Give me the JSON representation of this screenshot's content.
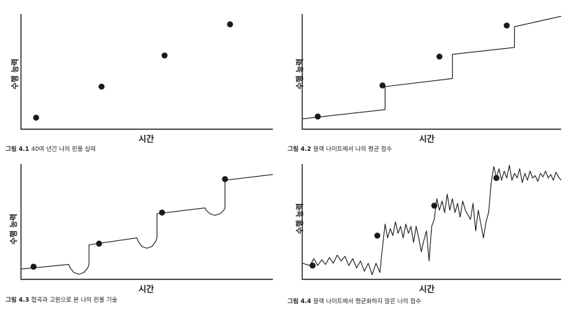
{
  "chart_data": [
    {
      "type": "scatter",
      "caption_prefix": "그림 4.1",
      "caption": "40여 년간 나의 핀볼 실력",
      "xlabel": "시간",
      "ylabel": "수행 능력",
      "xlim": [
        0,
        100
      ],
      "ylim": [
        0,
        100
      ],
      "series": [
        {
          "kind": "points",
          "x": [
            6,
            32,
            57,
            83
          ],
          "y": [
            10,
            37,
            64,
            91
          ]
        }
      ]
    },
    {
      "type": "line",
      "caption_prefix": "그림 4.2",
      "caption": "블랙 나이트에서 나의 평균 점수",
      "xlabel": "시간",
      "ylabel": "수행 능력",
      "xlim": [
        0,
        100
      ],
      "ylim": [
        0,
        100
      ],
      "series": [
        {
          "kind": "line",
          "x": [
            0,
            32,
            32,
            58,
            58,
            82,
            82,
            100
          ],
          "y": [
            9,
            17,
            37,
            44,
            65,
            71,
            89,
            98
          ]
        },
        {
          "kind": "points",
          "x": [
            6,
            31,
            53,
            79
          ],
          "y": [
            11,
            38,
            63,
            90
          ]
        }
      ]
    },
    {
      "type": "line",
      "caption_prefix": "그림 4.3",
      "caption": "협곡과 고원으로 본 나의 핀볼 기술",
      "xlabel": "시간",
      "ylabel": "수행 능력",
      "xlim": [
        0,
        100
      ],
      "ylim": [
        0,
        100
      ],
      "series": [
        {
          "kind": "line",
          "x": [
            0,
            19,
            19.5,
            21,
            23,
            25,
            26.5,
            27,
            27,
            46,
            46.5,
            48,
            50,
            52,
            53.5,
            54,
            54,
            73,
            73.5,
            75,
            77,
            79,
            80.5,
            81,
            81,
            100
          ],
          "y": [
            9,
            13,
            10,
            6,
            4.5,
            6,
            10,
            13,
            30,
            36,
            33,
            28.5,
            27,
            28.5,
            33,
            36,
            57,
            62,
            60,
            57,
            55.5,
            57,
            60,
            62,
            86,
            91
          ]
        },
        {
          "kind": "points",
          "x": [
            5,
            31,
            56,
            81
          ],
          "y": [
            11,
            31,
            58,
            87
          ]
        }
      ]
    },
    {
      "type": "line",
      "caption_prefix": "그림 4.4",
      "caption": "블랙 나이트에서 평균화하지 않은 나의 점수",
      "xlabel": "시간",
      "ylabel": "수행 능력",
      "xlim": [
        0,
        100
      ],
      "ylim": [
        0,
        100
      ],
      "series": [
        {
          "kind": "line",
          "x": [
            0,
            3,
            4.5,
            6,
            7.5,
            9,
            10.5,
            12,
            13.5,
            15,
            16.5,
            18,
            19.5,
            21,
            22.5,
            24,
            25.5,
            27,
            28.5,
            30,
            31,
            32,
            33,
            34,
            35,
            36,
            37,
            38,
            39,
            40,
            41,
            42,
            43,
            44,
            45,
            46,
            47,
            48,
            49,
            50,
            51,
            52,
            53,
            54,
            55,
            56,
            57,
            58,
            59,
            60,
            61,
            62,
            63,
            64,
            65,
            66,
            67,
            68,
            69,
            70,
            71,
            72,
            73,
            74,
            75,
            76,
            77,
            78,
            79,
            80,
            81,
            82,
            83,
            84,
            85,
            86,
            87,
            88,
            89,
            90,
            91,
            92,
            93,
            94,
            95,
            96,
            97,
            98,
            99,
            100
          ],
          "y": [
            14,
            12,
            18,
            12,
            17,
            13,
            19,
            14,
            21,
            16,
            20,
            12,
            18,
            10,
            16,
            7,
            14,
            4,
            14,
            6,
            28,
            48,
            36,
            44,
            38,
            50,
            40,
            46,
            36,
            48,
            40,
            46,
            32,
            46,
            36,
            24,
            34,
            42,
            16,
            46,
            52,
            70,
            60,
            68,
            58,
            74,
            60,
            70,
            58,
            66,
            54,
            68,
            60,
            56,
            52,
            66,
            42,
            60,
            48,
            36,
            50,
            58,
            84,
            98,
            88,
            96,
            86,
            94,
            88,
            99,
            86,
            92,
            88,
            96,
            84,
            92,
            86,
            94,
            88,
            90,
            85,
            92,
            89,
            94,
            88,
            91,
            86,
            93,
            89,
            86
          ]
        },
        {
          "kind": "points",
          "x": [
            4,
            29,
            51,
            75
          ],
          "y": [
            12,
            38,
            64,
            88
          ]
        }
      ]
    }
  ]
}
